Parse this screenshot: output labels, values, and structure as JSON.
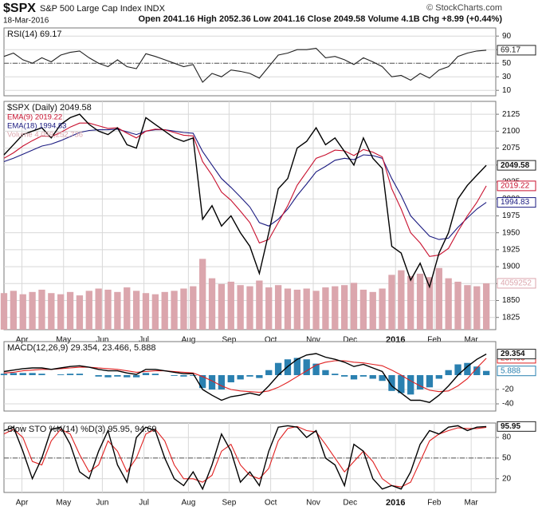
{
  "header": {
    "symbol": "$SPX",
    "name": "S&P 500 Large Cap Index INDX",
    "date": "18-Mar-2016",
    "quote": "Open 2041.16 High 2052.36 Low 2041.16 Close 2049.58 Volume 4.1B Chg +8.99 (+0.44%)",
    "credit": "© StockCharts.com"
  },
  "chart_data": [
    {
      "type": "line",
      "title": "RSI(14) 69.17",
      "xlim": [
        0,
        52
      ],
      "ylim": [
        2,
        102
      ],
      "yticks": [
        10,
        30,
        50,
        70,
        90
      ],
      "reference": 50,
      "grid": true,
      "x": [
        0,
        1,
        2,
        3,
        4,
        5,
        6,
        7,
        8,
        9,
        10,
        11,
        12,
        13,
        14,
        15,
        16,
        17,
        18,
        19,
        20,
        21,
        22,
        23,
        24,
        25,
        26,
        27,
        28,
        29,
        30,
        31,
        32,
        33,
        34,
        35,
        36,
        37,
        38,
        39,
        40,
        41,
        42,
        43,
        44,
        45,
        46,
        47,
        48,
        49,
        50,
        51
      ],
      "series": [
        {
          "name": "RSI(14)",
          "type": "line",
          "color": "#222222",
          "value_label": "69.17",
          "values": [
            60,
            65,
            55,
            50,
            58,
            52,
            62,
            66,
            68,
            58,
            50,
            45,
            55,
            45,
            42,
            64,
            60,
            55,
            50,
            45,
            48,
            22,
            35,
            30,
            40,
            38,
            35,
            28,
            45,
            62,
            65,
            70,
            70,
            72,
            58,
            60,
            55,
            48,
            58,
            52,
            45,
            30,
            32,
            25,
            35,
            28,
            40,
            45,
            60,
            65,
            68,
            69.17
          ]
        }
      ]
    },
    {
      "type": "line",
      "title": "$SPX (Daily) 2049.58",
      "xlim": [
        0,
        52
      ],
      "ylim": [
        1807,
        2144
      ],
      "y2lim": [
        0,
        20000000
      ],
      "grid": true,
      "yticks": [
        1825,
        1850,
        1875,
        1900,
        1925,
        1950,
        1975,
        2000,
        2025,
        2050,
        2075,
        2100,
        2125
      ],
      "xticks": [
        {
          "value": 1.9,
          "label": "Apr"
        },
        {
          "value": 6.3,
          "label": "May"
        },
        {
          "value": 10.4,
          "label": "Jun"
        },
        {
          "value": 14.8,
          "label": "Jul"
        },
        {
          "value": 19.5,
          "label": "Aug"
        },
        {
          "value": 23.8,
          "label": "Sep"
        },
        {
          "value": 28.2,
          "label": "Oct"
        },
        {
          "value": 32.7,
          "label": "Nov"
        },
        {
          "value": 36.6,
          "label": "Dec"
        },
        {
          "value": 41.4,
          "label": "2016"
        },
        {
          "value": 45.5,
          "label": "Feb"
        },
        {
          "value": 49.4,
          "label": "Mar"
        }
      ],
      "x": [
        0,
        1,
        2,
        3,
        4,
        5,
        6,
        7,
        8,
        9,
        10,
        11,
        12,
        13,
        14,
        15,
        16,
        17,
        18,
        19,
        20,
        21,
        22,
        23,
        24,
        25,
        26,
        27,
        28,
        29,
        30,
        31,
        32,
        33,
        34,
        35,
        36,
        37,
        38,
        39,
        40,
        41,
        42,
        43,
        44,
        45,
        46,
        47,
        48,
        49,
        50,
        51
      ],
      "series": [
        {
          "name": "Volume 4,059,252,736",
          "type": "bar",
          "axis": "y2",
          "color": "#dba6ad",
          "value_label": "4059252",
          "values": [
            3200000,
            3400000,
            3100000,
            3300000,
            3500000,
            3200000,
            3100000,
            3300000,
            3000000,
            3400000,
            3600000,
            3500000,
            3300000,
            3700000,
            3400000,
            3200000,
            3100000,
            3300000,
            3400000,
            3600000,
            3800000,
            6200000,
            4500000,
            4000000,
            4200000,
            3900000,
            3800000,
            4300000,
            3700000,
            3900000,
            3600000,
            3500000,
            3600000,
            3400000,
            3700000,
            3800000,
            3900000,
            4100000,
            3500000,
            3300000,
            3600000,
            4800000,
            5200000,
            4700000,
            4900000,
            4600000,
            5400000,
            4500000,
            4200000,
            3900000,
            3800000,
            4059252
          ]
        },
        {
          "name": "EMA(18) 1994.83",
          "type": "line",
          "color": "#1a1a80",
          "value_label": "1994.83",
          "values": [
            2055,
            2060,
            2066,
            2072,
            2078,
            2081,
            2086,
            2092,
            2098,
            2101,
            2102,
            2102,
            2103,
            2099,
            2095,
            2100,
            2102,
            2102,
            2100,
            2098,
            2097,
            2070,
            2050,
            2030,
            2017,
            2003,
            1988,
            1965,
            1960,
            1970,
            1985,
            2005,
            2022,
            2040,
            2048,
            2057,
            2060,
            2058,
            2065,
            2064,
            2060,
            2030,
            2005,
            1975,
            1960,
            1945,
            1940,
            1942,
            1958,
            1972,
            1985,
            1994.83
          ]
        },
        {
          "name": "EMA(9) 2019.22",
          "type": "line",
          "color": "#c8102e",
          "value_label": "2019.22",
          "values": [
            2060,
            2068,
            2078,
            2086,
            2093,
            2092,
            2098,
            2106,
            2112,
            2112,
            2108,
            2104,
            2105,
            2097,
            2090,
            2100,
            2103,
            2102,
            2098,
            2094,
            2093,
            2055,
            2035,
            2010,
            1998,
            1982,
            1965,
            1935,
            1940,
            1965,
            1990,
            2020,
            2040,
            2060,
            2065,
            2072,
            2071,
            2064,
            2073,
            2069,
            2062,
            2015,
            1985,
            1950,
            1935,
            1915,
            1917,
            1927,
            1952,
            1975,
            1995,
            2019.22
          ]
        },
        {
          "name": "$SPX",
          "type": "line",
          "color": "#000000",
          "value_label": "2049.58",
          "values": [
            2065,
            2080,
            2095,
            2100,
            2105,
            2090,
            2110,
            2120,
            2125,
            2110,
            2100,
            2095,
            2105,
            2080,
            2075,
            2120,
            2110,
            2100,
            2090,
            2085,
            2090,
            1970,
            1990,
            1960,
            1975,
            1950,
            1930,
            1890,
            1950,
            2015,
            2030,
            2075,
            2085,
            2105,
            2080,
            2090,
            2070,
            2050,
            2090,
            2060,
            2045,
            1930,
            1920,
            1880,
            1905,
            1870,
            1920,
            1950,
            2000,
            2020,
            2035,
            2049.58
          ]
        }
      ]
    },
    {
      "type": "line",
      "title": "MACD(12,26,9) 29.354, 23.466, 5.888",
      "xlim": [
        0,
        52
      ],
      "ylim": [
        -50,
        46.7
      ],
      "yticks": [
        -40,
        -20
      ],
      "grid": true,
      "x": [
        0,
        1,
        2,
        3,
        4,
        5,
        6,
        7,
        8,
        9,
        10,
        11,
        12,
        13,
        14,
        15,
        16,
        17,
        18,
        19,
        20,
        21,
        22,
        23,
        24,
        25,
        26,
        27,
        28,
        29,
        30,
        31,
        32,
        33,
        34,
        35,
        36,
        37,
        38,
        39,
        40,
        41,
        42,
        43,
        44,
        45,
        46,
        47,
        48,
        49,
        50,
        51
      ],
      "series": [
        {
          "name": "Histogram",
          "type": "bar",
          "color": "#2a80b0",
          "value_label": "5.888",
          "values": [
            2,
            3,
            3,
            3,
            2,
            0,
            1,
            2,
            2,
            0,
            -2,
            -3,
            -2,
            -3,
            -3,
            3,
            2,
            0,
            -1,
            -2,
            -1,
            -18,
            -20,
            -20,
            -10,
            -6,
            -2,
            -4,
            7,
            17,
            22,
            24,
            22,
            16,
            7,
            2,
            -2,
            -6,
            -2,
            -5,
            -8,
            -22,
            -25,
            -27,
            -20,
            -17,
            -5,
            7,
            15,
            17,
            12,
            5.888
          ]
        },
        {
          "name": "Signal",
          "type": "line",
          "color": "#e02020",
          "value_label": "23.466",
          "values": [
            3,
            4,
            6,
            7,
            8,
            8,
            9,
            10,
            11,
            11,
            10,
            9,
            8,
            6,
            4,
            5,
            6,
            6,
            5,
            4,
            3,
            -2,
            -8,
            -15,
            -20,
            -22,
            -23,
            -24,
            -22,
            -17,
            -10,
            -2,
            6,
            14,
            18,
            20,
            20,
            18,
            17,
            15,
            13,
            7,
            0,
            -8,
            -15,
            -21,
            -23,
            -22,
            -15,
            -5,
            10,
            23.466
          ]
        },
        {
          "name": "MACD",
          "type": "line",
          "color": "#000000",
          "value_label": "29.354",
          "values": [
            5,
            7,
            9,
            10,
            10,
            8,
            10,
            12,
            13,
            11,
            8,
            6,
            6,
            3,
            1,
            8,
            8,
            6,
            4,
            2,
            2,
            -20,
            -28,
            -35,
            -30,
            -28,
            -25,
            -28,
            -15,
            0,
            12,
            22,
            28,
            30,
            25,
            22,
            18,
            12,
            15,
            10,
            5,
            -15,
            -25,
            -35,
            -35,
            -38,
            -28,
            -15,
            0,
            12,
            22,
            29.354
          ]
        }
      ]
    },
    {
      "type": "line",
      "title": "Slow STO %K(14) %D(3) 95.95, 94.69",
      "xlim": [
        0,
        52
      ],
      "ylim": [
        0,
        101
      ],
      "yticks": [
        20,
        50,
        80
      ],
      "reference": 50,
      "grid": true,
      "xticks": [
        {
          "value": 1.9,
          "label": "Apr"
        },
        {
          "value": 6.3,
          "label": "May"
        },
        {
          "value": 10.4,
          "label": "Jun"
        },
        {
          "value": 14.8,
          "label": "Jul"
        },
        {
          "value": 19.5,
          "label": "Aug"
        },
        {
          "value": 23.8,
          "label": "Sep"
        },
        {
          "value": 28.2,
          "label": "Oct"
        },
        {
          "value": 32.7,
          "label": "Nov"
        },
        {
          "value": 36.6,
          "label": "Dec"
        },
        {
          "value": 41.4,
          "label": "2016"
        },
        {
          "value": 45.5,
          "label": "Feb"
        },
        {
          "value": 49.4,
          "label": "Mar"
        }
      ],
      "x": [
        0,
        1,
        2,
        3,
        4,
        5,
        6,
        7,
        8,
        9,
        10,
        11,
        12,
        13,
        14,
        15,
        16,
        17,
        18,
        19,
        20,
        21,
        22,
        23,
        24,
        25,
        26,
        27,
        28,
        29,
        30,
        31,
        32,
        33,
        34,
        35,
        36,
        37,
        38,
        39,
        40,
        41,
        42,
        43,
        44,
        45,
        46,
        47,
        48,
        49,
        50,
        51
      ],
      "series": [
        {
          "name": "%D(3)",
          "type": "line",
          "color": "#e02020",
          "values": [
            85,
            92,
            80,
            45,
            40,
            75,
            92,
            85,
            55,
            30,
            40,
            75,
            60,
            30,
            50,
            85,
            92,
            75,
            40,
            20,
            20,
            15,
            25,
            60,
            70,
            40,
            25,
            20,
            35,
            75,
            93,
            96,
            90,
            88,
            70,
            50,
            30,
            45,
            60,
            45,
            20,
            10,
            8,
            15,
            45,
            75,
            85,
            90,
            94,
            93,
            93,
            94.69
          ]
        },
        {
          "name": "%K(14)",
          "type": "line",
          "color": "#000000",
          "value_label": "95.95",
          "values": [
            90,
            95,
            60,
            20,
            50,
            92,
            95,
            70,
            30,
            20,
            60,
            90,
            40,
            15,
            80,
            95,
            90,
            50,
            20,
            10,
            30,
            5,
            40,
            85,
            60,
            15,
            30,
            10,
            60,
            95,
            97,
            95,
            80,
            90,
            50,
            40,
            10,
            70,
            60,
            20,
            5,
            10,
            5,
            30,
            70,
            90,
            85,
            95,
            97,
            90,
            95,
            95.95
          ]
        }
      ]
    }
  ]
}
